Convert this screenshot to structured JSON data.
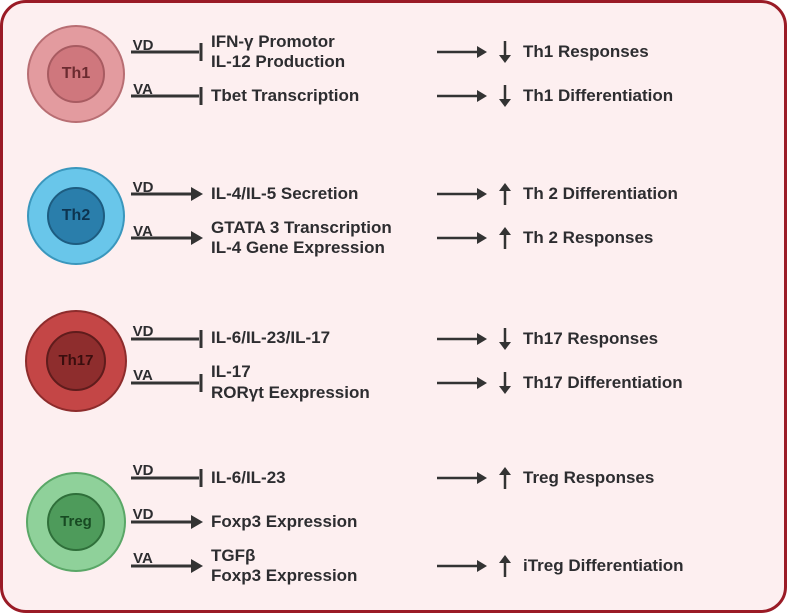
{
  "diagram": {
    "type": "flowchart",
    "background_color": "#fdeff0",
    "border_color": "#9a1b26",
    "text_color": "#2d2d30",
    "arrow_color": "#333333",
    "font_size_label": 15,
    "font_size_text": 17,
    "cells": [
      {
        "id": "th1",
        "label": "Th1",
        "outer_diameter": 94,
        "inner_diameter": 54,
        "outer_fill": "#e39b9f",
        "outer_stroke": "#b86e73",
        "inner_fill": "#cf777d",
        "inner_stroke": "#a85b61",
        "label_color": "#6b2b30",
        "label_fontsize": 16,
        "paths": [
          {
            "vitamin": "VD",
            "arrow_type": "inhibit",
            "mid_lines": [
              "IFN-γ  Promotor",
              "IL-12 Production"
            ],
            "effect_dir": "down",
            "outcome": "Th1 Responses"
          },
          {
            "vitamin": "VA",
            "arrow_type": "inhibit",
            "mid_lines": [
              "Tbet Transcription"
            ],
            "effect_dir": "down",
            "outcome": "Th1 Differentiation"
          }
        ]
      },
      {
        "id": "th2",
        "label": "Th2",
        "outer_diameter": 94,
        "inner_diameter": 54,
        "outer_fill": "#69c6ea",
        "outer_stroke": "#3a97bd",
        "inner_fill": "#2a7eab",
        "inner_stroke": "#1d5c80",
        "label_color": "#0d3450",
        "label_fontsize": 16,
        "paths": [
          {
            "vitamin": "VD",
            "arrow_type": "promote",
            "mid_lines": [
              "IL-4/IL-5 Secretion"
            ],
            "effect_dir": "up",
            "outcome": "Th 2 Differentiation"
          },
          {
            "vitamin": "VA",
            "arrow_type": "promote",
            "mid_lines": [
              "GTATA 3 Transcription",
              "IL-4 Gene Expression"
            ],
            "effect_dir": "up",
            "outcome": "Th 2 Responses"
          }
        ]
      },
      {
        "id": "th17",
        "label": "Th17",
        "outer_diameter": 98,
        "inner_diameter": 56,
        "outer_fill": "#c44646",
        "outer_stroke": "#8d2c2c",
        "inner_fill": "#8e2d2d",
        "inner_stroke": "#5f1c1c",
        "label_color": "#3a0e0e",
        "label_fontsize": 15,
        "paths": [
          {
            "vitamin": "VD",
            "arrow_type": "inhibit",
            "mid_lines": [
              "IL-6/IL-23/IL-17"
            ],
            "effect_dir": "down",
            "outcome": "Th17  Responses"
          },
          {
            "vitamin": "VA",
            "arrow_type": "inhibit",
            "mid_lines": [
              "IL-17",
              "RORγt Eexpression"
            ],
            "effect_dir": "down",
            "outcome": "Th17 Differentiation"
          }
        ]
      },
      {
        "id": "treg",
        "label": "Treg",
        "outer_diameter": 96,
        "inner_diameter": 54,
        "outer_fill": "#8fd19a",
        "outer_stroke": "#5aa767",
        "inner_fill": "#4e9b5b",
        "inner_stroke": "#2f6f3a",
        "label_color": "#174a22",
        "label_fontsize": 15,
        "paths": [
          {
            "vitamin": "VD",
            "arrow_type": "inhibit",
            "mid_lines": [
              "IL-6/IL-23"
            ],
            "effect_dir": "up",
            "outcome": "Treg Responses"
          },
          {
            "vitamin": "VD",
            "arrow_type": "promote",
            "mid_lines": [
              "Foxp3 Expression"
            ],
            "effect_dir": "none",
            "outcome": ""
          },
          {
            "vitamin": "VA",
            "arrow_type": "promote",
            "mid_lines": [
              "TGFβ",
              "Foxp3 Expression"
            ],
            "effect_dir": "up",
            "outcome": "iTreg Differentiation"
          }
        ]
      }
    ]
  }
}
